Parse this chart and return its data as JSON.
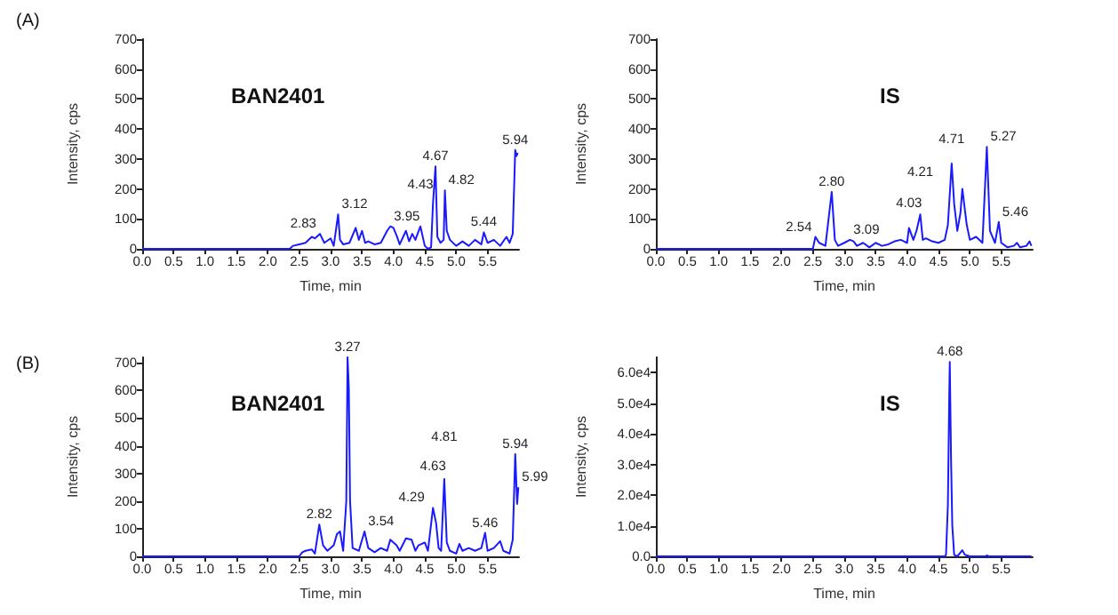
{
  "chart_data": [
    {
      "type": "line",
      "title": "(A)",
      "xlabel": "Time, min",
      "ylabel": "Intensity, cps",
      "annotations": [
        "BAN2401",
        {
          "text": "2.83",
          "x": 2.83,
          "y": 50
        },
        {
          "text": "3.12",
          "x": 3.12,
          "y": 115
        },
        {
          "text": "3.95",
          "x": 3.95,
          "y": 75
        },
        {
          "text": "4.43",
          "x": 4.43,
          "y": 75
        },
        {
          "text": "4.67",
          "x": 4.67,
          "y": 275
        },
        {
          "text": "4.82",
          "x": 4.82,
          "y": 195
        },
        {
          "text": "5.44",
          "x": 5.44,
          "y": 55
        },
        {
          "text": "5.94",
          "x": 5.94,
          "y": 330
        }
      ],
      "xlim": [
        0,
        6
      ],
      "xticks": [
        {
          "value": 0,
          "label": "0.0"
        },
        0.5,
        {
          "value": 1,
          "label": "1.0"
        },
        1.5,
        {
          "value": 2,
          "label": "2.0"
        },
        2.5,
        {
          "value": 3,
          "label": "3.0"
        },
        3.5,
        {
          "value": 4,
          "label": "4.0"
        },
        4.5,
        {
          "value": 5,
          "label": "5.0"
        },
        5.5
      ],
      "ylim": [
        0,
        700
      ],
      "yticks": [
        0,
        100,
        200,
        300,
        400,
        500,
        600,
        700
      ],
      "grid": false,
      "marker": "none",
      "line_style": "solid",
      "series": [
        {
          "color": "#1a1aff",
          "x": [
            0,
            2.35,
            2.4,
            2.5,
            2.6,
            2.7,
            2.75,
            2.83,
            2.9,
            3.0,
            3.05,
            3.12,
            3.15,
            3.2,
            3.3,
            3.4,
            3.45,
            3.5,
            3.55,
            3.6,
            3.7,
            3.8,
            3.9,
            3.95,
            4.0,
            4.05,
            4.1,
            4.2,
            4.25,
            4.3,
            4.35,
            4.43,
            4.5,
            4.55,
            4.6,
            4.63,
            4.67,
            4.7,
            4.75,
            4.8,
            4.82,
            4.85,
            4.9,
            5.0,
            5.1,
            5.2,
            5.3,
            5.4,
            5.44,
            5.5,
            5.6,
            5.7,
            5.8,
            5.85,
            5.9,
            5.94,
            5.96,
            5.98
          ],
          "values": [
            0,
            0,
            10,
            15,
            20,
            40,
            35,
            50,
            20,
            35,
            10,
            115,
            30,
            15,
            20,
            70,
            30,
            60,
            20,
            25,
            15,
            20,
            60,
            75,
            70,
            45,
            15,
            60,
            25,
            50,
            30,
            75,
            10,
            0,
            5,
            150,
            275,
            40,
            20,
            30,
            195,
            60,
            30,
            10,
            25,
            10,
            30,
            15,
            55,
            20,
            30,
            10,
            40,
            20,
            50,
            330,
            310,
            320
          ]
        }
      ]
    },
    {
      "type": "line",
      "xlabel": "Time, min",
      "ylabel": "Intensity, cps",
      "annotations": [
        "IS",
        {
          "text": "2.54",
          "x": 2.54,
          "y": 40
        },
        {
          "text": "2.80",
          "x": 2.8,
          "y": 190
        },
        {
          "text": "3.09",
          "x": 3.09,
          "y": 30
        },
        {
          "text": "4.03",
          "x": 4.03,
          "y": 70
        },
        {
          "text": "4.21",
          "x": 4.21,
          "y": 115
        },
        {
          "text": "4.71",
          "x": 4.71,
          "y": 285
        },
        {
          "text": "5.27",
          "x": 5.27,
          "y": 340
        },
        {
          "text": "5.46",
          "x": 5.46,
          "y": 90
        }
      ],
      "xlim": [
        0,
        6
      ],
      "xticks": [
        {
          "value": 0,
          "label": "0.0"
        },
        0.5,
        {
          "value": 1,
          "label": "1.0"
        },
        1.5,
        {
          "value": 2,
          "label": "2.0"
        },
        2.5,
        {
          "value": 3,
          "label": "3.0"
        },
        3.5,
        {
          "value": 4,
          "label": "4.0"
        },
        4.5,
        {
          "value": 5,
          "label": "5.0"
        },
        5.5
      ],
      "ylim": [
        0,
        700
      ],
      "yticks": [
        0,
        100,
        200,
        300,
        400,
        500,
        600,
        700
      ],
      "grid": false,
      "marker": "none",
      "line_style": "solid",
      "series": [
        {
          "color": "#1a1aff",
          "x": [
            0,
            2.5,
            2.54,
            2.6,
            2.7,
            2.8,
            2.85,
            2.9,
            3.0,
            3.09,
            3.15,
            3.2,
            3.3,
            3.4,
            3.5,
            3.6,
            3.7,
            3.8,
            3.9,
            4.0,
            4.03,
            4.1,
            4.15,
            4.21,
            4.25,
            4.3,
            4.4,
            4.5,
            4.6,
            4.65,
            4.71,
            4.75,
            4.8,
            4.85,
            4.88,
            4.95,
            5.0,
            5.1,
            5.2,
            5.27,
            5.32,
            5.4,
            5.46,
            5.5,
            5.6,
            5.7,
            5.75,
            5.8,
            5.9,
            5.95,
            5.98
          ],
          "values": [
            0,
            0,
            40,
            20,
            10,
            190,
            30,
            10,
            20,
            30,
            25,
            10,
            20,
            5,
            20,
            10,
            15,
            25,
            30,
            20,
            70,
            30,
            60,
            115,
            30,
            35,
            25,
            20,
            30,
            80,
            285,
            150,
            60,
            120,
            200,
            80,
            30,
            40,
            20,
            340,
            60,
            20,
            90,
            20,
            5,
            10,
            20,
            5,
            10,
            25,
            10
          ]
        }
      ]
    },
    {
      "type": "line",
      "title": "(B)",
      "xlabel": "Time, min",
      "ylabel": "Intensity, cps",
      "annotations": [
        "BAN2401",
        {
          "text": "2.82",
          "x": 2.82,
          "y": 115
        },
        {
          "text": "3.27",
          "x": 3.27,
          "y": 720
        },
        {
          "text": "3.54",
          "x": 3.54,
          "y": 90
        },
        {
          "text": "4.29",
          "x": 4.29,
          "y": 60
        },
        {
          "text": "4.63",
          "x": 4.63,
          "y": 175
        },
        {
          "text": "4.81",
          "x": 4.81,
          "y": 280
        },
        {
          "text": "5.46",
          "x": 5.46,
          "y": 85
        },
        {
          "text": "5.94",
          "x": 5.94,
          "y": 370
        },
        {
          "text": "5.99",
          "x": 5.99,
          "y": 250
        }
      ],
      "xlim": [
        0,
        6
      ],
      "xticks": [
        {
          "value": 0,
          "label": "0.0"
        },
        0.5,
        {
          "value": 1,
          "label": "1.0"
        },
        1.5,
        {
          "value": 2,
          "label": "2.0"
        },
        2.5,
        {
          "value": 3,
          "label": "3.0"
        },
        3.5,
        {
          "value": 4,
          "label": "4.0"
        },
        4.5,
        {
          "value": 5,
          "label": "5.0"
        },
        5.5
      ],
      "ylim": [
        0,
        720
      ],
      "yticks": [
        0,
        100,
        200,
        300,
        400,
        500,
        600,
        700
      ],
      "grid": false,
      "marker": "none",
      "line_style": "solid",
      "series": [
        {
          "color": "#1a1aff",
          "x": [
            0,
            2.5,
            2.55,
            2.6,
            2.7,
            2.75,
            2.82,
            2.88,
            2.95,
            3.05,
            3.1,
            3.15,
            3.2,
            3.25,
            3.27,
            3.29,
            3.31,
            3.35,
            3.45,
            3.54,
            3.6,
            3.7,
            3.8,
            3.9,
            3.95,
            4.05,
            4.1,
            4.2,
            4.29,
            4.35,
            4.4,
            4.5,
            4.55,
            4.63,
            4.68,
            4.72,
            4.76,
            4.81,
            4.85,
            4.9,
            5.0,
            5.05,
            5.1,
            5.2,
            5.3,
            5.4,
            5.46,
            5.5,
            5.6,
            5.7,
            5.75,
            5.85,
            5.9,
            5.94,
            5.97,
            5.99
          ],
          "values": [
            0,
            0,
            15,
            20,
            25,
            10,
            115,
            40,
            20,
            40,
            80,
            90,
            20,
            200,
            720,
            610,
            200,
            30,
            20,
            90,
            30,
            15,
            30,
            20,
            60,
            40,
            20,
            65,
            60,
            20,
            40,
            50,
            20,
            175,
            120,
            30,
            20,
            280,
            50,
            20,
            10,
            45,
            20,
            30,
            20,
            30,
            85,
            20,
            30,
            55,
            20,
            10,
            60,
            370,
            190,
            250
          ]
        }
      ]
    },
    {
      "type": "line",
      "xlabel": "Time, min",
      "ylabel": "Intensity, cps",
      "annotations": [
        "IS",
        {
          "text": "4.68",
          "x": 4.68,
          "y": 63500
        }
      ],
      "xlim": [
        0,
        6
      ],
      "xticks": [
        {
          "value": 0,
          "label": "0.0"
        },
        0.5,
        {
          "value": 1,
          "label": "1.0"
        },
        1.5,
        {
          "value": 2,
          "label": "2.0"
        },
        2.5,
        {
          "value": 3,
          "label": "3.0"
        },
        3.5,
        {
          "value": 4,
          "label": "4.0"
        },
        4.5,
        {
          "value": 5,
          "label": "5.0"
        },
        5.5
      ],
      "ylim": [
        0,
        65000
      ],
      "yticks": [
        {
          "value": 0,
          "label": "0.0"
        },
        {
          "value": 10000,
          "label": "1.0e4"
        },
        {
          "value": 20000,
          "label": "2.0e4"
        },
        {
          "value": 30000,
          "label": "3.0e4"
        },
        {
          "value": 40000,
          "label": "4.0e4"
        },
        {
          "value": 50000,
          "label": "5.0e4"
        },
        {
          "value": 60000,
          "label": "6.0e4"
        }
      ],
      "grid": false,
      "marker": "none",
      "line_style": "solid",
      "series": [
        {
          "color": "#1a1aff",
          "x": [
            0,
            4.6,
            4.62,
            4.65,
            4.67,
            4.68,
            4.7,
            4.72,
            4.75,
            4.8,
            4.88,
            4.92,
            5.0,
            5.25,
            5.27,
            5.3,
            5.98
          ],
          "values": [
            0,
            0,
            500,
            17000,
            50000,
            63500,
            32000,
            10000,
            500,
            0,
            2000,
            500,
            0,
            0,
            300,
            0,
            0
          ]
        }
      ]
    }
  ]
}
